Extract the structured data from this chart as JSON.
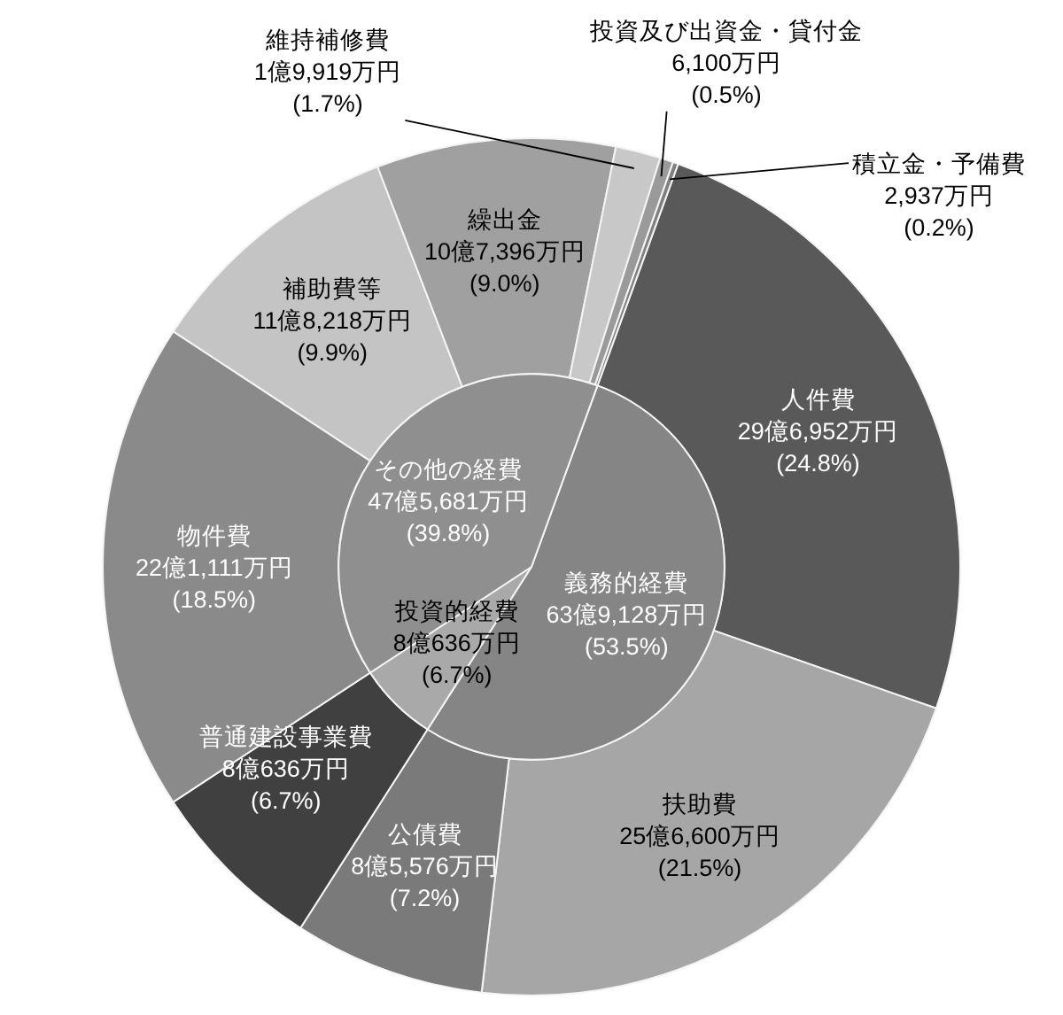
{
  "chart_data": [
    {
      "type": "donut",
      "categories": [
        "人件費",
        "扶助費",
        "公債費",
        "普通建設事業費",
        "物件費",
        "補助費等",
        "繰出金",
        "維持補修費",
        "投資及び出資金・貸付金",
        "積立金・予備費"
      ],
      "values": [
        24.8,
        21.5,
        7.2,
        6.7,
        18.5,
        9.9,
        9.0,
        1.7,
        0.5,
        0.2
      ],
      "value_labels": [
        "29億6,952万円\n(24.8%)",
        "25億6,600万円\n(21.5%)",
        "8億5,576万円\n(7.2%)",
        "8億636万円\n(6.7%)",
        "22億1,111万円\n(18.5%)",
        "11億8,218万円\n(9.9%)",
        "10億7,396万円\n(9.0%)",
        "1億9,919万円\n(1.7%)",
        "6,100万円\n(0.5%)",
        "2,937万円\n(0.2%)"
      ],
      "colors": [
        "#595959",
        "#a6a6a6",
        "#7a7a7a",
        "#404040",
        "#8a8a8a",
        "#c4c4c4",
        "#a0a0a0",
        "#c8c8c8",
        "#9a9a9a",
        "#7f7f7f"
      ]
    },
    {
      "type": "pie",
      "categories": [
        "義務的経費",
        "投資的経費",
        "その他の経費"
      ],
      "values": [
        53.5,
        6.7,
        39.8
      ],
      "value_labels": [
        "63億9,128万円\n(53.5%)",
        "8億636万円\n(6.7%)",
        "47億5,681万円\n(39.8%)"
      ],
      "colors": [
        "#858585",
        "#a9a9a9",
        "#8f8f8f"
      ]
    }
  ]
}
